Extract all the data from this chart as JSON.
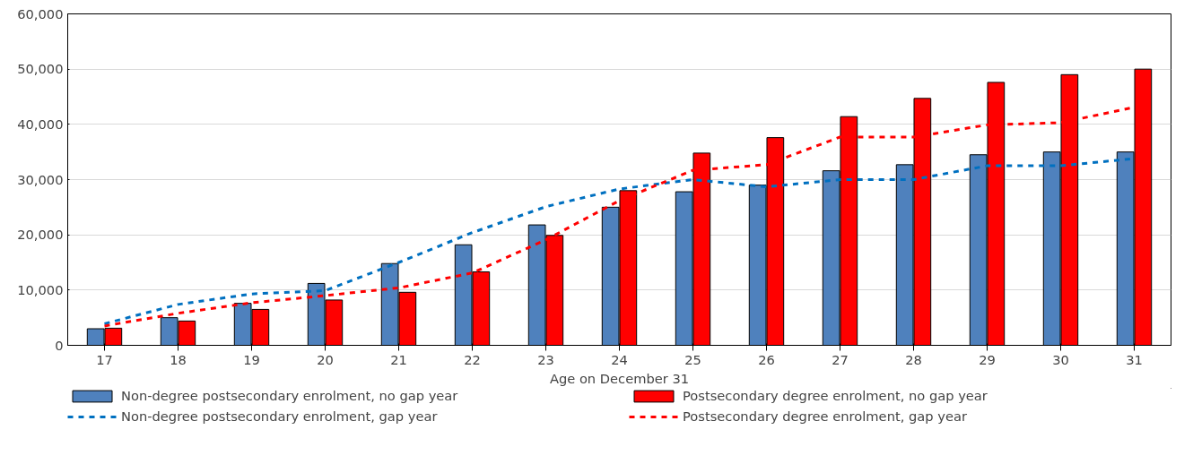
{
  "chart_data": {
    "type": "bar",
    "xlabel": "Age on December 31",
    "categories": [
      "17",
      "18",
      "19",
      "20",
      "21",
      "22",
      "23",
      "24",
      "25",
      "26",
      "27",
      "28",
      "29",
      "30",
      "31"
    ],
    "series": [
      {
        "name": "Non-degree postsecondary enrolment, no gap year",
        "color": "#4f81bd",
        "values": [
          3000,
          5000,
          7600,
          11200,
          14800,
          18200,
          21800,
          25000,
          27800,
          29000,
          31600,
          32700,
          34500,
          35000,
          35000
        ]
      },
      {
        "name": "Postsecondary degree enrolment, no gap year",
        "color": "#ff0000",
        "values": [
          3100,
          4400,
          6500,
          8200,
          9600,
          13300,
          19900,
          28000,
          34800,
          37600,
          41400,
          44700,
          47600,
          49000,
          50000
        ]
      },
      {
        "name": "Non-degree postsecondary enrolment, gap year",
        "type": "line",
        "line_style": "dashed",
        "color": "#0070c0",
        "values": [
          3900,
          7400,
          9300,
          9900,
          15000,
          20400,
          25100,
          28300,
          30000,
          28700,
          30000,
          30000,
          32500,
          32500,
          33800
        ]
      },
      {
        "name": "Postsecondary degree enrolment, gap year",
        "type": "line",
        "line_style": "dashed",
        "color": "#ff0000",
        "values": [
          3500,
          5800,
          7700,
          9000,
          10400,
          13100,
          19100,
          26200,
          31700,
          32700,
          37700,
          37700,
          39900,
          40300,
          43100
        ]
      }
    ],
    "ylim": [
      0,
      60000
    ],
    "yticks": [
      {
        "value": 0,
        "label": "0"
      },
      {
        "value": 10000,
        "label": "10,000"
      },
      {
        "value": 20000,
        "label": "20,000"
      },
      {
        "value": 30000,
        "label": "30,000"
      },
      {
        "value": 40000,
        "label": "40,000"
      },
      {
        "value": 50000,
        "label": "50,000"
      },
      {
        "value": 60000,
        "label": "60,000"
      }
    ],
    "grid": "y",
    "legend": "bottom"
  }
}
